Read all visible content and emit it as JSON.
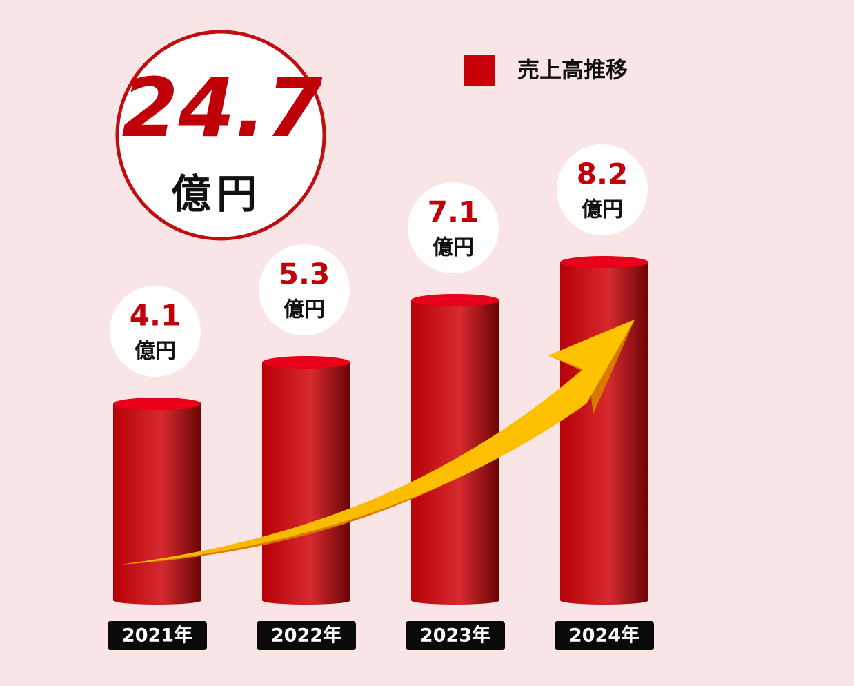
{
  "chart_data": {
    "type": "cylinder-bar",
    "total": 24.7,
    "unit": "億円",
    "categories": [
      "2021年",
      "2022年",
      "2023年",
      "2024年"
    ],
    "series": [
      {
        "name": "売上高推移",
        "color": "#c8000a",
        "values": [
          4.1,
          5.3,
          7.1,
          8.2
        ]
      }
    ]
  }
}
